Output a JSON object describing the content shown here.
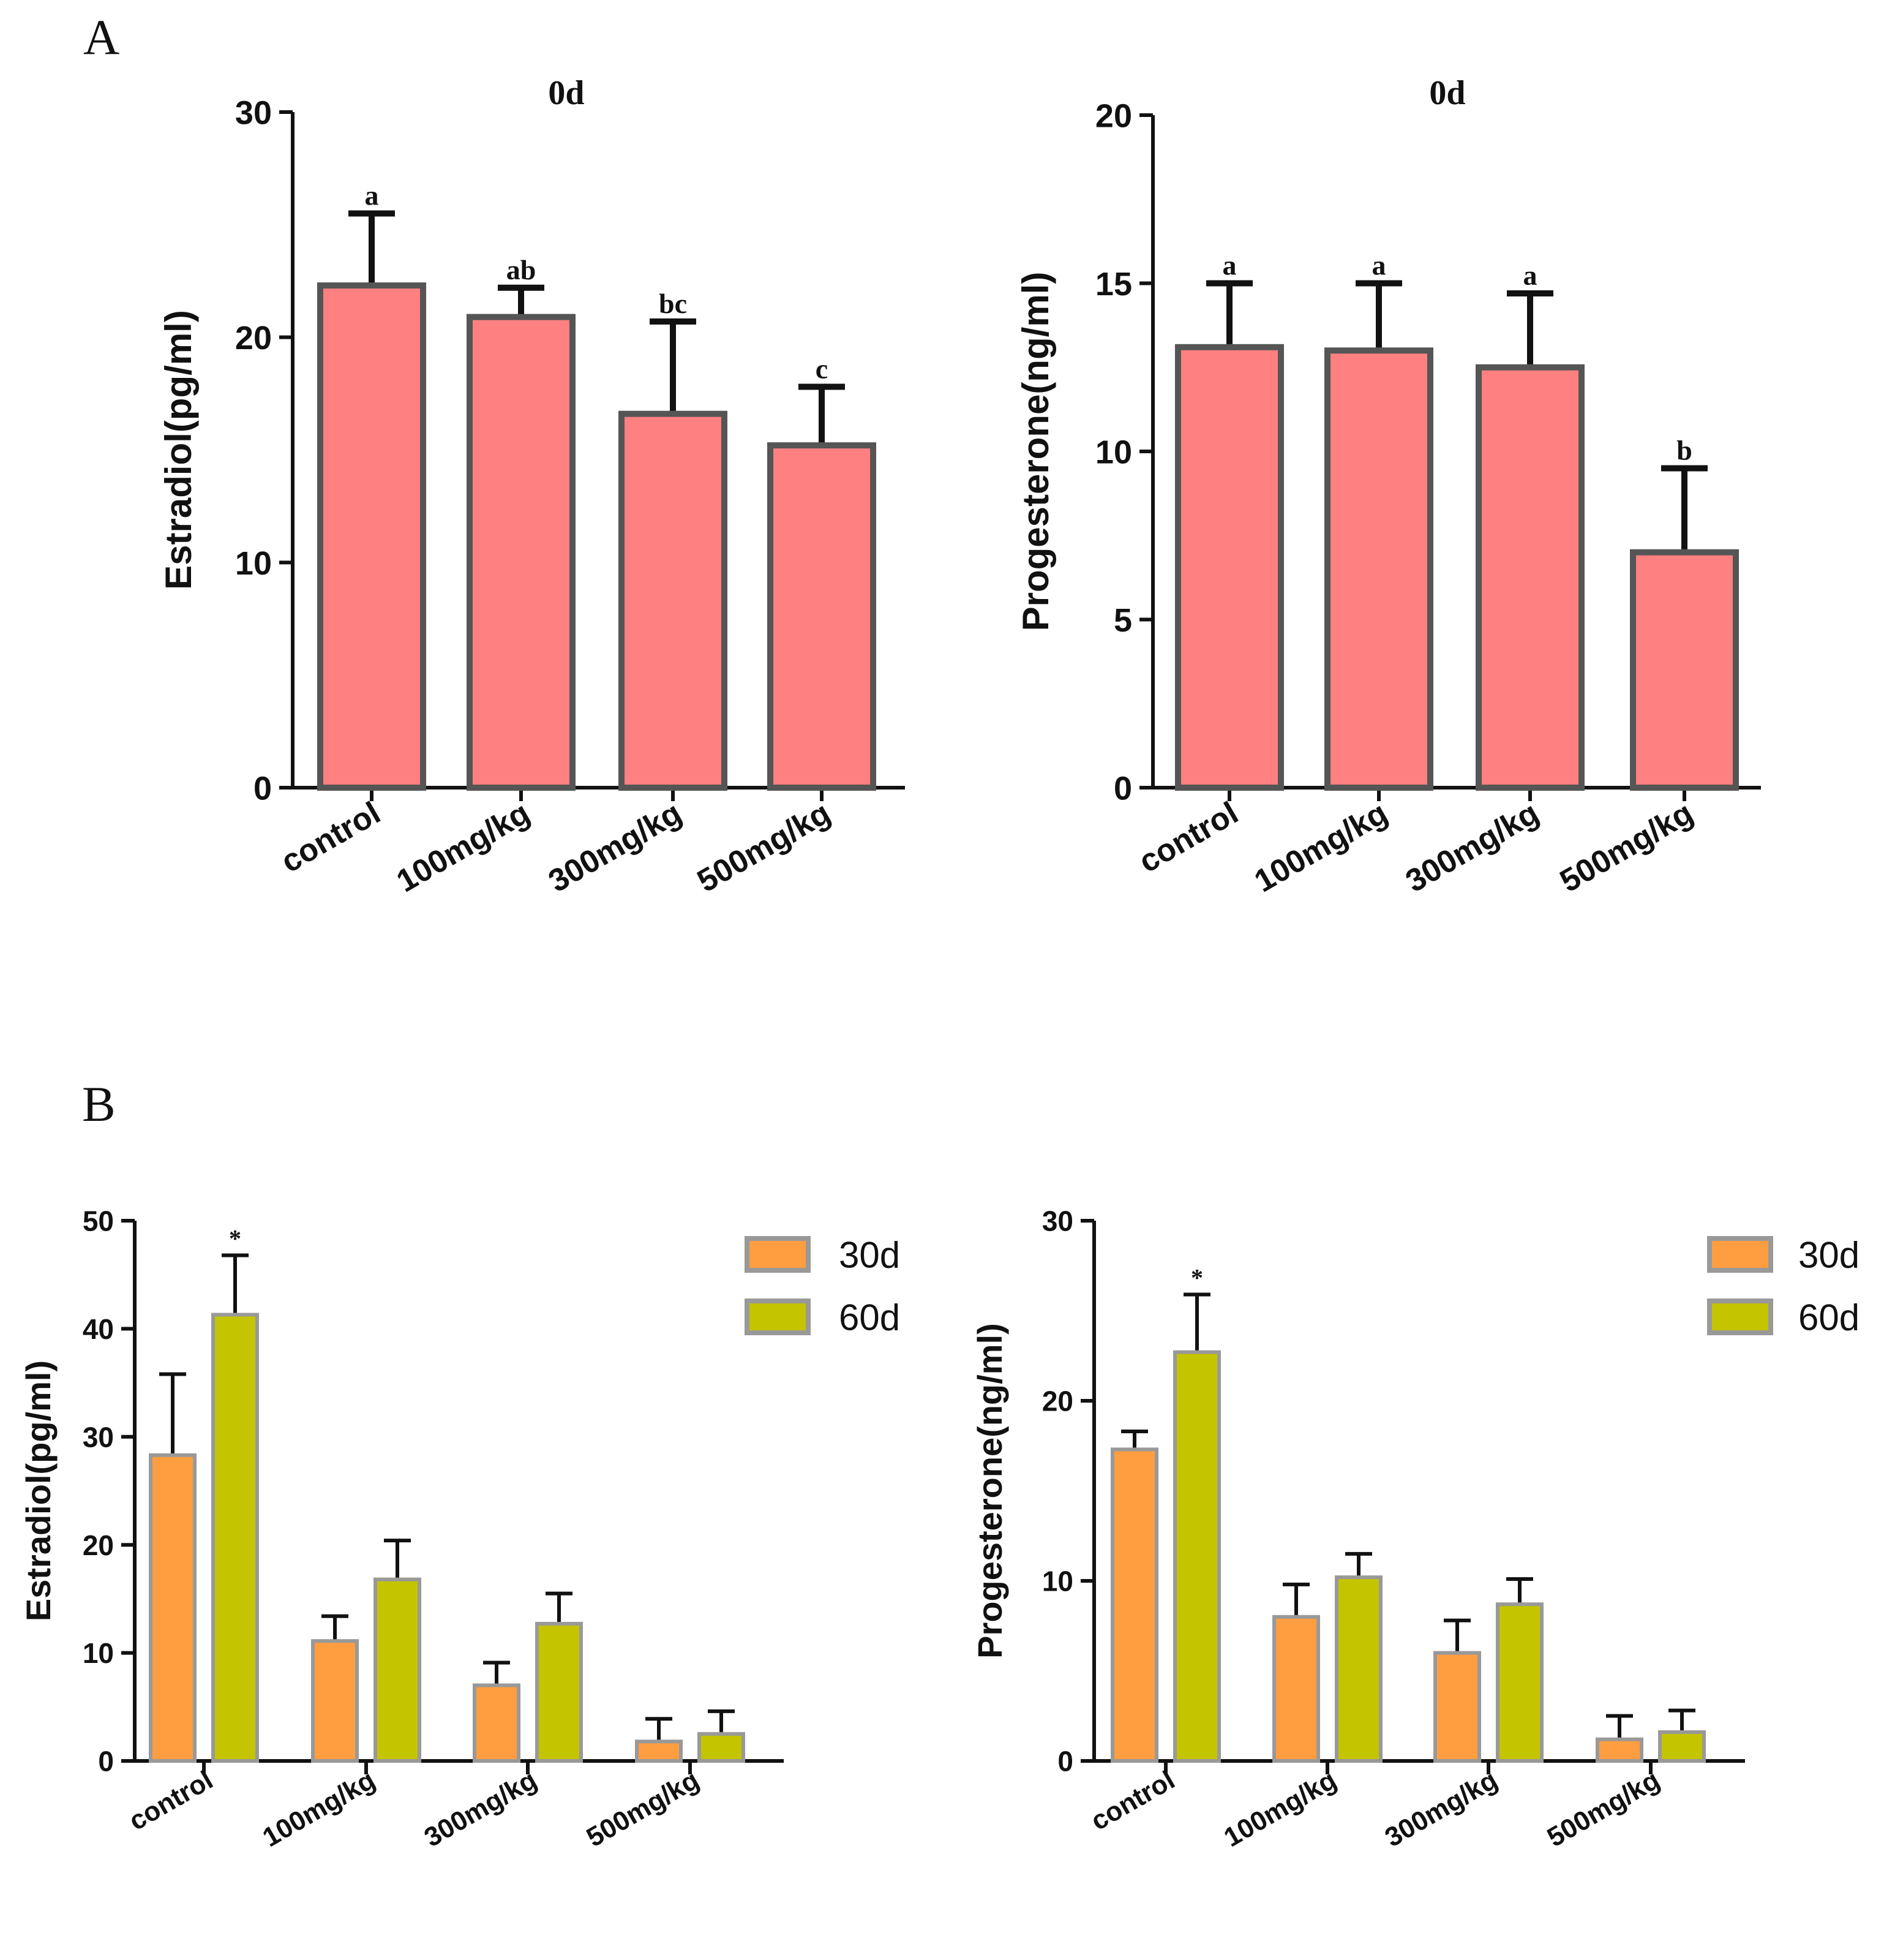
{
  "panels": [
    {
      "letter": "A"
    },
    {
      "letter": "B"
    }
  ],
  "colors": {
    "single": "#FF8080",
    "series30": "#FF9E40",
    "series60": "#C4C400",
    "bar_edge": "#555555",
    "legend_edge": "#999999",
    "axis": "#111111"
  },
  "chart_data": [
    {
      "type": "bar",
      "title": "0d",
      "ylabel": "Estradiol(pg/ml)",
      "xlabel": "",
      "ylim": [
        0,
        30
      ],
      "yticks": [
        0,
        10,
        20,
        30
      ],
      "categories": [
        "control",
        "100mg/kg",
        "300mg/kg",
        "500mg/kg"
      ],
      "series": [
        {
          "name": "0d",
          "values": [
            22.3,
            20.9,
            16.6,
            15.2
          ],
          "errors": [
            3.2,
            1.3,
            4.1,
            2.6
          ],
          "labels": [
            "a",
            "ab",
            "bc",
            "c"
          ]
        }
      ]
    },
    {
      "type": "bar",
      "title": "0d",
      "ylabel": "Progesterone(ng/ml)",
      "xlabel": "",
      "ylim": [
        0,
        20
      ],
      "yticks": [
        0,
        5,
        10,
        15,
        20
      ],
      "categories": [
        "control",
        "100mg/kg",
        "300mg/kg",
        "500mg/kg"
      ],
      "series": [
        {
          "name": "0d",
          "values": [
            13.1,
            13.0,
            12.5,
            7.0
          ],
          "errors": [
            1.9,
            2.0,
            2.2,
            2.5
          ],
          "labels": [
            "a",
            "a",
            "a",
            "b"
          ]
        }
      ]
    },
    {
      "type": "bar",
      "title": "",
      "ylabel": "Estradiol(pg/ml)",
      "xlabel": "",
      "ylim": [
        0,
        50
      ],
      "yticks": [
        0,
        10,
        20,
        30,
        40,
        50
      ],
      "categories": [
        "control",
        "100mg/kg",
        "300mg/kg",
        "500mg/kg"
      ],
      "legend": "top-right",
      "series": [
        {
          "name": "30d",
          "values": [
            28.3,
            11.1,
            7.0,
            1.8
          ],
          "errors": [
            7.5,
            2.3,
            2.1,
            2.1
          ],
          "labels": [
            "",
            "",
            "",
            ""
          ]
        },
        {
          "name": "60d",
          "values": [
            41.3,
            16.8,
            12.7,
            2.5
          ],
          "errors": [
            5.5,
            3.6,
            2.8,
            2.1
          ],
          "labels": [
            "*",
            "",
            "",
            ""
          ]
        }
      ]
    },
    {
      "type": "bar",
      "title": "",
      "ylabel": "Progesterone(ng/ml)",
      "xlabel": "",
      "ylim": [
        0,
        30
      ],
      "yticks": [
        0,
        10,
        20,
        30
      ],
      "categories": [
        "control",
        "100mg/kg",
        "300mg/kg",
        "500mg/kg"
      ],
      "legend": "top-right",
      "series": [
        {
          "name": "30d",
          "values": [
            17.3,
            8.0,
            6.0,
            1.2
          ],
          "errors": [
            1.0,
            1.8,
            1.8,
            1.3
          ],
          "labels": [
            "",
            "",
            "",
            ""
          ]
        },
        {
          "name": "60d",
          "values": [
            22.7,
            10.2,
            8.7,
            1.6
          ],
          "errors": [
            3.2,
            1.3,
            1.4,
            1.2
          ],
          "labels": [
            "*",
            "",
            "",
            ""
          ]
        }
      ]
    }
  ]
}
